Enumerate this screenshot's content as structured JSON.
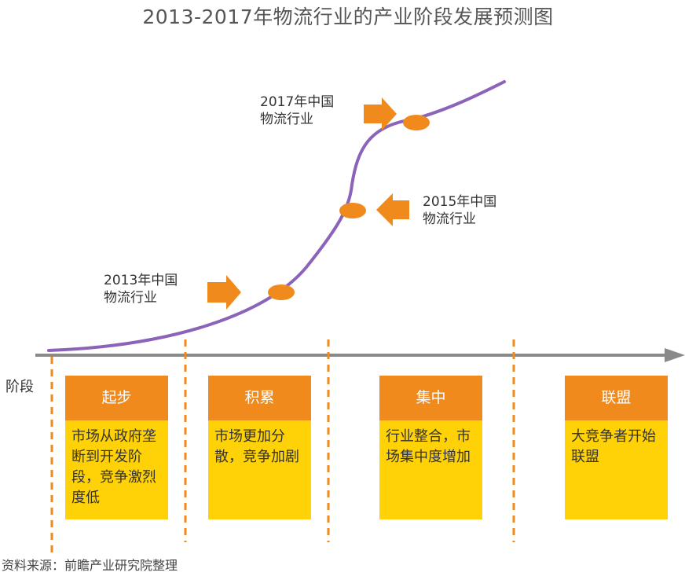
{
  "title": "2013-2017年物流行业的产业阶段发展预测图",
  "colors": {
    "curve": "#8b63b8",
    "marker": "#f08a1d",
    "axis": "#8a8a8a",
    "divider": "#f08a1d",
    "stage_head": "#f08a1d",
    "stage_body": "#ffd207"
  },
  "callouts": [
    {
      "text": "2017年中国\n物流行业"
    },
    {
      "text": "2015年中国\n物流行业"
    },
    {
      "text": "2013年中国\n物流行业"
    }
  ],
  "axis_label": "阶段",
  "stages": [
    {
      "name": "起步",
      "desc": "市场从政府垄断到开发阶段，竞争激烈度低"
    },
    {
      "name": "积累",
      "desc": "市场更加分散，竞争加剧"
    },
    {
      "name": "集中",
      "desc": "行业整合，市场集中度增加"
    },
    {
      "name": "联盟",
      "desc": "大竞争者开始联盟"
    }
  ],
  "source": "资料来源：前瞻产业研究院整理"
}
